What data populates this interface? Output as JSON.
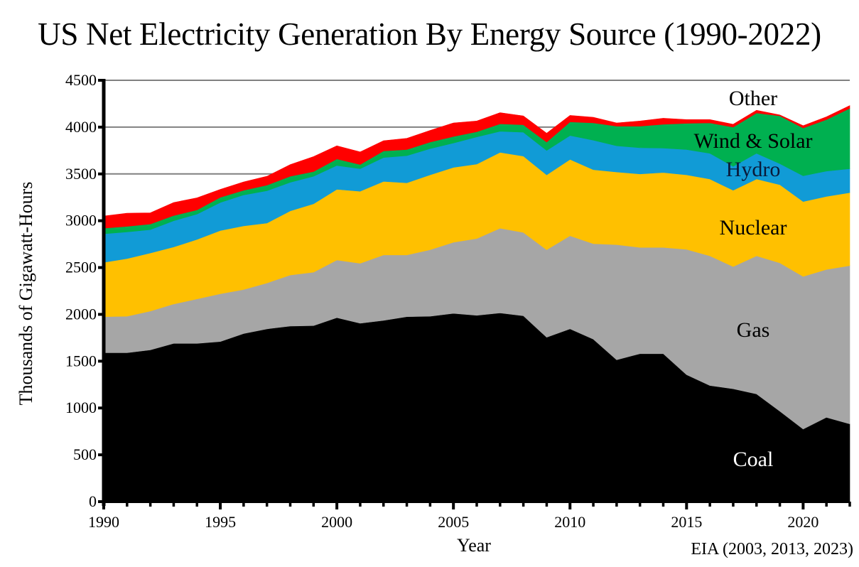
{
  "chart_data": {
    "type": "area",
    "stacked": true,
    "title": "US Net Electricity Generation By Energy Source (1990-2022)",
    "xlabel": "Year",
    "ylabel": "Thousands of Gigawatt-Hours",
    "source_note": "EIA (2003, 2013, 2023)",
    "xlim": [
      1990,
      2022
    ],
    "ylim": [
      0,
      4500
    ],
    "x_ticks": [
      1990,
      1995,
      2000,
      2005,
      2010,
      2015,
      2020
    ],
    "y_ticks": [
      0,
      500,
      1000,
      1500,
      2000,
      2500,
      3000,
      3500,
      4000,
      4500
    ],
    "gridlines": "horizontal",
    "legend": "inline labels",
    "x": [
      1990,
      1991,
      1992,
      1993,
      1994,
      1995,
      1996,
      1997,
      1998,
      1999,
      2000,
      2001,
      2002,
      2003,
      2004,
      2005,
      2006,
      2007,
      2008,
      2009,
      2010,
      2011,
      2012,
      2013,
      2014,
      2015,
      2016,
      2017,
      2018,
      2019,
      2020,
      2021,
      2022
    ],
    "series": [
      {
        "name": "Coal",
        "color": "#000000",
        "label_color": "#ffffff",
        "values": [
          1590,
          1590,
          1620,
          1690,
          1690,
          1710,
          1795,
          1845,
          1875,
          1880,
          1965,
          1905,
          1935,
          1975,
          1980,
          2010,
          1990,
          2015,
          1985,
          1755,
          1845,
          1735,
          1515,
          1580,
          1580,
          1355,
          1240,
          1205,
          1150,
          965,
          775,
          900,
          830
        ]
      },
      {
        "name": "Gas",
        "color": "#a6a6a6",
        "label_color": "#000000",
        "values": [
          385,
          390,
          415,
          420,
          475,
          510,
          470,
          490,
          545,
          570,
          615,
          640,
          700,
          660,
          710,
          760,
          820,
          905,
          890,
          935,
          995,
          1020,
          1230,
          1135,
          1135,
          1340,
          1385,
          1305,
          1475,
          1585,
          1630,
          1580,
          1690
        ]
      },
      {
        "name": "Nuclear",
        "color": "#ffc000",
        "label_color": "#000000",
        "values": [
          580,
          615,
          620,
          610,
          635,
          675,
          680,
          640,
          685,
          730,
          755,
          770,
          785,
          770,
          800,
          800,
          795,
          810,
          815,
          800,
          815,
          790,
          775,
          785,
          800,
          795,
          820,
          815,
          820,
          835,
          800,
          780,
          780
        ]
      },
      {
        "name": "Hydro",
        "color": "#119bd6",
        "label_color": "#0a1a3a",
        "values": [
          305,
          285,
          250,
          280,
          270,
          300,
          330,
          345,
          305,
          295,
          255,
          240,
          255,
          290,
          280,
          260,
          290,
          225,
          255,
          260,
          255,
          315,
          280,
          280,
          260,
          270,
          275,
          255,
          275,
          225,
          275,
          270,
          255
        ]
      },
      {
        "name": "Wind & Solar",
        "color": "#00b050",
        "label_color": "#000000",
        "values": [
          60,
          60,
          60,
          55,
          45,
          55,
          50,
          60,
          65,
          50,
          70,
          45,
          70,
          65,
          70,
          70,
          55,
          80,
          80,
          90,
          145,
          185,
          210,
          230,
          255,
          280,
          325,
          420,
          430,
          510,
          510,
          550,
          645
        ]
      },
      {
        "name": "Other",
        "color": "#ff0000",
        "label_color": "#000000",
        "values": [
          130,
          140,
          120,
          140,
          130,
          85,
          90,
          95,
          125,
          160,
          140,
          135,
          110,
          120,
          125,
          145,
          115,
          120,
          95,
          95,
          70,
          60,
          35,
          55,
          65,
          40,
          35,
          30,
          30,
          10,
          25,
          30,
          30
        ]
      }
    ]
  }
}
